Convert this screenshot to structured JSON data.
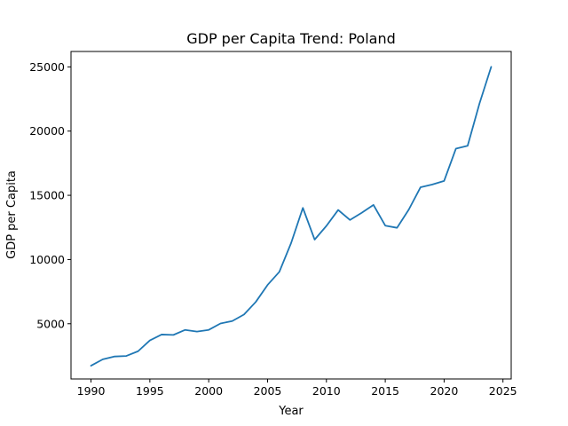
{
  "chart_data": {
    "type": "line",
    "title": "GDP per Capita Trend: Poland",
    "xlabel": "Year",
    "ylabel": "GDP per Capita",
    "xlim": [
      1988.3,
      2025.7
    ],
    "ylim": [
      700,
      26200
    ],
    "xticks": [
      1990,
      1995,
      2000,
      2005,
      2010,
      2015,
      2020,
      2025
    ],
    "yticks": [
      5000,
      10000,
      15000,
      20000,
      25000
    ],
    "grid": false,
    "line_color": "#1f77b4",
    "series": [
      {
        "x": [
          1990,
          1991,
          1992,
          1993,
          1994,
          1995,
          1996,
          1997,
          1998,
          1999,
          2000,
          2001,
          2002,
          2003,
          2004,
          2005,
          2006,
          2007,
          2008,
          2009,
          2010,
          2011,
          2012,
          2013,
          2014,
          2015,
          2016,
          2017,
          2018,
          2019,
          2020,
          2021,
          2022,
          2023,
          2024
        ],
        "values": [
          1730,
          2230,
          2450,
          2490,
          2860,
          3700,
          4160,
          4130,
          4520,
          4390,
          4520,
          5020,
          5210,
          5720,
          6700,
          8020,
          9040,
          11280,
          14020,
          11550,
          12620,
          13860,
          13080,
          13640,
          14250,
          12640,
          12470,
          13890,
          15630,
          15840,
          16120,
          18630,
          18860,
          22130,
          25000
        ]
      }
    ]
  }
}
